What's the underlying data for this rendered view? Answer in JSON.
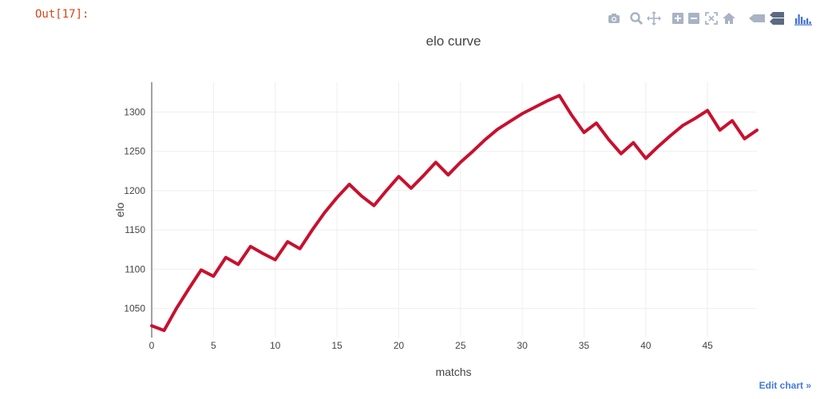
{
  "cell": {
    "out_prompt": "Out[17]:"
  },
  "modebar": {
    "buttons": [
      "camera-icon",
      "zoom-icon",
      "pan-icon",
      "zoom-in-icon",
      "zoom-out-icon",
      "autoscale-icon",
      "reset-axes-icon",
      "hover-closest-icon",
      "hover-compare-icon",
      "plotly-logo-icon"
    ],
    "color": "#a9b3c4",
    "logo_color": "#3f6fd4"
  },
  "edit_link": "Edit chart »",
  "chart_data": {
    "type": "line",
    "title": "elo curve",
    "xlabel": "matchs",
    "ylabel": "elo",
    "xlim": [
      0,
      49
    ],
    "ylim": [
      1013,
      1338
    ],
    "x_ticks": [
      0,
      5,
      10,
      15,
      20,
      25,
      30,
      35,
      40,
      45
    ],
    "y_ticks": [
      1050,
      1100,
      1150,
      1200,
      1250,
      1300
    ],
    "grid": true,
    "line_color": "#c8102e",
    "x": [
      0,
      1,
      2,
      3,
      4,
      5,
      6,
      7,
      8,
      9,
      10,
      11,
      12,
      13,
      14,
      15,
      16,
      17,
      18,
      19,
      20,
      21,
      22,
      23,
      24,
      25,
      26,
      27,
      28,
      29,
      30,
      31,
      32,
      33,
      34,
      35,
      36,
      37,
      38,
      39,
      40,
      41,
      42,
      43,
      44,
      45,
      46,
      47,
      48,
      49
    ],
    "y": [
      1028,
      1022,
      1050,
      1075,
      1099,
      1091,
      1115,
      1106,
      1129,
      1120,
      1112,
      1135,
      1126,
      1150,
      1172,
      1191,
      1208,
      1193,
      1181,
      1200,
      1218,
      1203,
      1219,
      1236,
      1220,
      1236,
      1250,
      1265,
      1278,
      1288,
      1298,
      1306,
      1314,
      1321,
      1296,
      1274,
      1286,
      1265,
      1247,
      1261,
      1241,
      1256,
      1270,
      1283,
      1292,
      1302,
      1277,
      1289,
      1266,
      1277
    ]
  }
}
